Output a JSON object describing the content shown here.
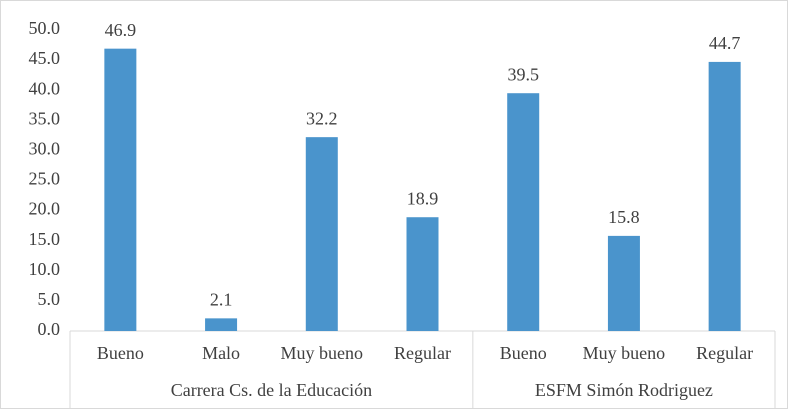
{
  "chart_data": {
    "type": "bar",
    "color": "#4a94cc",
    "groups": [
      {
        "name": "Carrera Cs. de la Educación",
        "categories": [
          "Bueno",
          "Malo",
          "Muy bueno",
          "Regular"
        ],
        "values": [
          46.9,
          2.1,
          32.2,
          18.9
        ]
      },
      {
        "name": "ESFM Simón Rodriguez",
        "categories": [
          "Bueno",
          "Muy bueno",
          "Regular"
        ],
        "values": [
          39.5,
          15.8,
          44.7
        ]
      }
    ],
    "ylim": [
      0,
      50
    ],
    "yticks": [
      {
        "value": 0,
        "label": "0.0"
      },
      {
        "value": 5,
        "label": "5.0"
      },
      {
        "value": 10,
        "label": "10.0"
      },
      {
        "value": 15,
        "label": "15.0"
      },
      {
        "value": 20,
        "label": "20.0"
      },
      {
        "value": 25,
        "label": "25.0"
      },
      {
        "value": 30,
        "label": "30.0"
      },
      {
        "value": 35,
        "label": "35.0"
      },
      {
        "value": 40,
        "label": "40.0"
      },
      {
        "value": 45,
        "label": "45.0"
      },
      {
        "value": 50,
        "label": "50.0"
      }
    ],
    "grid": false
  }
}
